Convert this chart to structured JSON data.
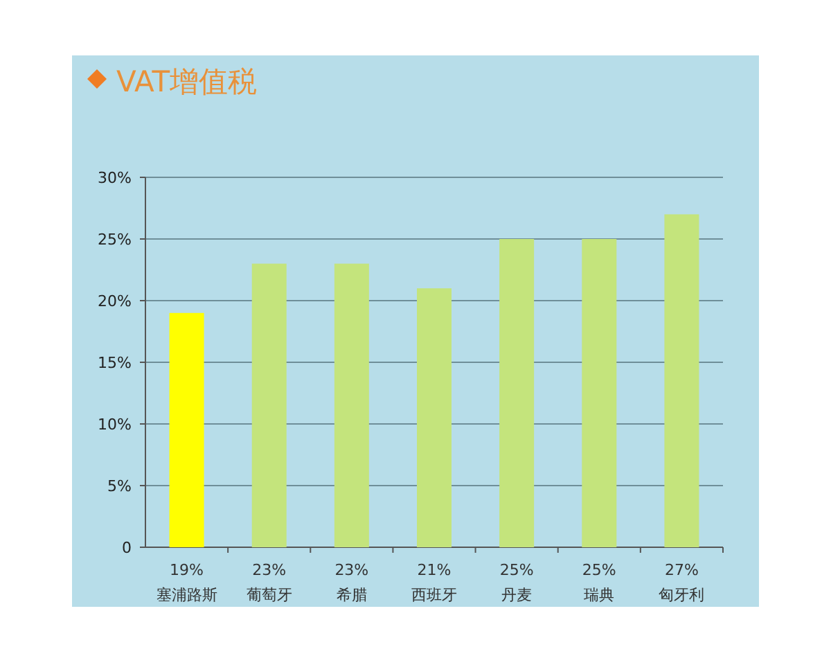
{
  "chart_data": {
    "type": "bar",
    "title": "VAT增值税",
    "categories": [
      "塞浦路斯",
      "葡萄牙",
      "希腊",
      "西班牙",
      "丹麦",
      "瑞典",
      "匈牙利"
    ],
    "values": [
      19,
      23,
      23,
      21,
      25,
      25,
      27
    ],
    "value_labels": [
      "19%",
      "23%",
      "23%",
      "21%",
      "25%",
      "25%",
      "27%"
    ],
    "colors": [
      "#ffff00",
      "#c4e47c",
      "#c4e47c",
      "#c4e47c",
      "#c4e47c",
      "#c4e47c",
      "#c4e47c"
    ],
    "ylim": [
      0,
      30
    ],
    "yticks": [
      0,
      {
        "value": 5,
        "label": "5%"
      },
      {
        "value": 10,
        "label": "10%"
      },
      {
        "value": 15,
        "label": "15%"
      },
      {
        "value": 20,
        "label": "20%"
      },
      {
        "value": 25,
        "label": "25%"
      },
      {
        "value": 30,
        "label": "30%"
      }
    ],
    "grid": "y"
  }
}
